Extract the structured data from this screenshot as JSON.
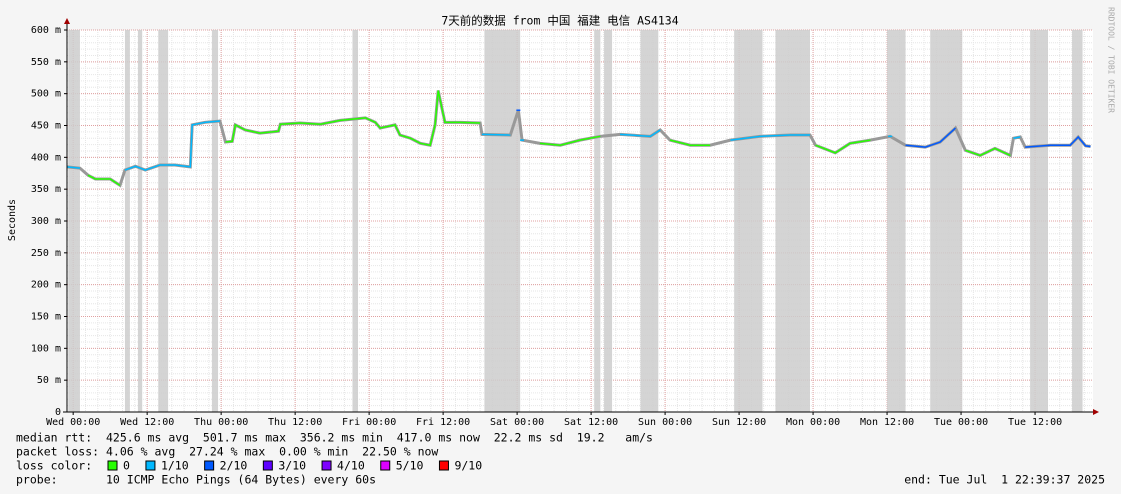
{
  "chart_data": {
    "type": "line",
    "title": "7天前的数据 from 中国 福建 电信 AS4134",
    "ylabel": "Seconds",
    "watermark": "RRDTOOL / TOBI OETIKER",
    "xlim": [
      -1,
      165.4
    ],
    "ylim": [
      0,
      0.6
    ],
    "yticks": [
      0,
      {
        "value": 0.05,
        "label": "50 m"
      },
      {
        "value": 0.1,
        "label": "100 m"
      },
      {
        "value": 0.15,
        "label": "150 m"
      },
      {
        "value": 0.2,
        "label": "200 m"
      },
      {
        "value": 0.25,
        "label": "250 m"
      },
      {
        "value": 0.3,
        "label": "300 m"
      },
      {
        "value": 0.35,
        "label": "350 m"
      },
      {
        "value": 0.4,
        "label": "400 m"
      },
      {
        "value": 0.45,
        "label": "450 m"
      },
      {
        "value": 0.5,
        "label": "500 m"
      },
      {
        "value": 0.55,
        "label": "550 m"
      },
      {
        "value": 0.6,
        "label": "600 m"
      }
    ],
    "xticks": [
      {
        "value": 0,
        "label": "Wed 00:00"
      },
      {
        "value": 12,
        "label": "Wed 12:00"
      },
      {
        "value": 24,
        "label": "Thu 00:00"
      },
      {
        "value": 36,
        "label": "Thu 12:00"
      },
      {
        "value": 48,
        "label": "Fri 00:00"
      },
      {
        "value": 60,
        "label": "Fri 12:00"
      },
      {
        "value": 72,
        "label": "Sat 00:00"
      },
      {
        "value": 84,
        "label": "Sat 12:00"
      },
      {
        "value": 96,
        "label": "Sun 00:00"
      },
      {
        "value": 108,
        "label": "Sun 12:00"
      },
      {
        "value": 120,
        "label": "Mon 00:00"
      },
      {
        "value": 132,
        "label": "Mon 12:00"
      },
      {
        "value": 144,
        "label": "Tue 00:00"
      },
      {
        "value": 156,
        "label": "Tue 12:00"
      }
    ],
    "grid": true,
    "minor_grid": {
      "x": 2,
      "y": 0.01
    },
    "x": [
      -1.0,
      1.1,
      2.4,
      3.6,
      6.0,
      7.6,
      8.4,
      10.1,
      11.7,
      14.1,
      16.5,
      19.0,
      19.3,
      21.4,
      23.8,
      24.7,
      25.8,
      26.3,
      27.9,
      30.3,
      33.3,
      33.6,
      36.8,
      40.1,
      43.3,
      47.4,
      49.0,
      49.8,
      52.2,
      53.0,
      54.7,
      56.3,
      57.9,
      58.7,
      59.2,
      59.7,
      60.3,
      62.8,
      66.0,
      66.3,
      70.9,
      72.2,
      72.8,
      75.7,
      79.0,
      82.2,
      85.5,
      88.7,
      93.6,
      95.2,
      96.8,
      100.1,
      103.3,
      106.6,
      111.4,
      116.3,
      119.5,
      120.4,
      123.6,
      126.0,
      129.3,
      132.5,
      135.0,
      138.2,
      140.6,
      143.1,
      144.7,
      147.1,
      149.5,
      152.0,
      152.5,
      153.6,
      154.4,
      158.5,
      161.7,
      163.0,
      164.2,
      165.0
    ],
    "values": [
      0.385,
      0.383,
      0.372,
      0.366,
      0.366,
      0.356,
      0.38,
      0.386,
      0.38,
      0.388,
      0.388,
      0.385,
      0.451,
      0.455,
      0.457,
      0.424,
      0.425,
      0.451,
      0.443,
      0.438,
      0.441,
      0.452,
      0.454,
      0.452,
      0.458,
      0.462,
      0.455,
      0.446,
      0.451,
      0.435,
      0.43,
      0.422,
      0.419,
      0.451,
      0.505,
      0.482,
      0.455,
      0.455,
      0.454,
      0.436,
      0.435,
      0.474,
      0.427,
      0.422,
      0.419,
      0.427,
      0.433,
      0.436,
      0.433,
      0.443,
      0.427,
      0.419,
      0.419,
      0.427,
      0.433,
      0.435,
      0.435,
      0.419,
      0.407,
      0.422,
      0.427,
      0.433,
      0.419,
      0.416,
      0.424,
      0.446,
      0.411,
      0.403,
      0.414,
      0.403,
      0.43,
      0.432,
      0.416,
      0.419,
      0.419,
      0.432,
      0.418,
      0.417
    ],
    "colors": [
      "#00b8ff",
      "#00b8ff",
      "#26ff00",
      "#26ff00",
      "#26ff00",
      "#26ff00",
      "#00b8ff",
      "#00b8ff",
      "#00b8ff",
      "#00b8ff",
      "#00b8ff",
      "#00b8ff",
      "#00b8ff",
      "#00b8ff",
      "#00b8ff",
      "#26ff00",
      "#26ff00",
      "#26ff00",
      "#26ff00",
      "#26ff00",
      "#26ff00",
      "#26ff00",
      "#26ff00",
      "#26ff00",
      "#26ff00",
      "#26ff00",
      "#26ff00",
      "#26ff00",
      "#26ff00",
      "#26ff00",
      "#26ff00",
      "#26ff00",
      "#26ff00",
      "#26ff00",
      "#26ff00",
      "#26ff00",
      "#26ff00",
      "#26ff00",
      "#26ff00",
      "#00b8ff",
      "#00b8ff",
      "#0059ff",
      "#00b8ff",
      "#26ff00",
      "#26ff00",
      "#26ff00",
      "#26ff00",
      "#00b8ff",
      "#00b8ff",
      "#00b8ff",
      "#26ff00",
      "#26ff00",
      "#26ff00",
      "#00b8ff",
      "#00b8ff",
      "#00b8ff",
      "#00b8ff",
      "#26ff00",
      "#26ff00",
      "#26ff00",
      "#26ff00",
      "#00b8ff",
      "#0059ff",
      "#0059ff",
      "#0059ff",
      "#0059ff",
      "#26ff00",
      "#26ff00",
      "#26ff00",
      "#26ff00",
      "#00b8ff",
      "#00b8ff",
      "#0059ff",
      "#0059ff",
      "#0059ff",
      "#0059ff",
      "#0059ff",
      "#0059ff"
    ],
    "loss_bands": [
      [
        -0.8,
        1.1
      ],
      [
        8.4,
        9.2
      ],
      [
        10.5,
        11.2
      ],
      [
        13.8,
        15.4
      ],
      [
        22.5,
        23.5
      ],
      [
        45.3,
        46.2
      ],
      [
        66.7,
        72.5
      ],
      [
        84.5,
        85.5
      ],
      [
        86.1,
        87.4
      ],
      [
        92.0,
        94.9
      ],
      [
        107.2,
        111.8
      ],
      [
        113.9,
        119.5
      ],
      [
        132.0,
        135.0
      ],
      [
        139.0,
        144.2
      ],
      [
        155.2,
        158.1
      ],
      [
        162.0,
        163.7
      ]
    ],
    "stats": [
      "median rtt:  425.6 ms avg  501.7 ms max  356.2 ms min  417.0 ms now  22.2 ms sd  19.2   am/s",
      "packet loss: 4.06 % avg  27.24 % max  0.00 % min  22.50 % now"
    ],
    "loss_legend": {
      "label": "loss color:",
      "items": [
        {
          "label": "0",
          "color": "#26ff00"
        },
        {
          "label": "1/10",
          "color": "#00b8ff"
        },
        {
          "label": "2/10",
          "color": "#0059ff"
        },
        {
          "label": "3/10",
          "color": "#5e00ff"
        },
        {
          "label": "4/10",
          "color": "#7e00ff"
        },
        {
          "label": "5/10",
          "color": "#dd00ff"
        },
        {
          "label": "9/10",
          "color": "#ff0000"
        }
      ]
    },
    "probe": "probe:       10 ICMP Echo Pings (64 Bytes) every 60s",
    "end": "end: Tue Jul  1 22:39:37 2025"
  }
}
